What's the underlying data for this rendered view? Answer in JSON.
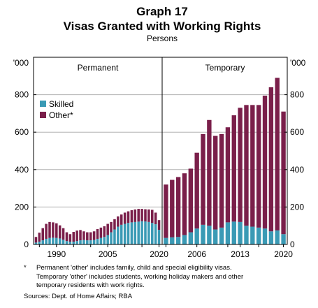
{
  "title_line1": "Graph 17",
  "title_line2": "Visas Granted with Working Rights",
  "units": "Persons",
  "y_unit_label": "'000",
  "colors": {
    "skilled": "#3a9ab5",
    "other": "#7a1f4a"
  },
  "chart_data": [
    {
      "type": "bar",
      "stacked": true,
      "panel": "Permanent",
      "x_tick_labels": [
        "1990",
        "2005",
        "2020"
      ],
      "years": [
        1984,
        1985,
        1986,
        1987,
        1988,
        1989,
        1990,
        1991,
        1992,
        1993,
        1994,
        1995,
        1996,
        1997,
        1998,
        1999,
        2000,
        2001,
        2002,
        2003,
        2004,
        2005,
        2006,
        2007,
        2008,
        2009,
        2010,
        2011,
        2012,
        2013,
        2014,
        2015,
        2016,
        2017,
        2018,
        2019,
        2020
      ],
      "series": [
        {
          "name": "Skilled",
          "values": [
            10,
            15,
            22,
            30,
            35,
            36,
            35,
            32,
            25,
            18,
            15,
            15,
            18,
            22,
            24,
            22,
            22,
            24,
            30,
            35,
            40,
            50,
            65,
            80,
            95,
            105,
            110,
            115,
            118,
            120,
            122,
            124,
            123,
            120,
            115,
            108,
            78
          ]
        },
        {
          "name": "Other*",
          "values": [
            30,
            48,
            65,
            80,
            85,
            82,
            78,
            70,
            62,
            47,
            40,
            52,
            56,
            55,
            46,
            43,
            43,
            46,
            52,
            55,
            57,
            60,
            55,
            55,
            55,
            55,
            60,
            62,
            65,
            67,
            68,
            66,
            65,
            67,
            70,
            62,
            52
          ]
        }
      ],
      "ylim": [
        0,
        1000
      ],
      "yticks": [
        0,
        200,
        400,
        600,
        800
      ],
      "legend": {
        "placement": "upper-left"
      }
    },
    {
      "type": "bar",
      "stacked": true,
      "panel": "Temporary",
      "x_tick_labels": [
        "2006",
        "2013",
        "2020"
      ],
      "years": [
        2001,
        2002,
        2003,
        2004,
        2005,
        2006,
        2007,
        2008,
        2009,
        2010,
        2011,
        2012,
        2013,
        2014,
        2015,
        2016,
        2017,
        2018,
        2019,
        2020
      ],
      "series": [
        {
          "name": "Skilled",
          "values": [
            35,
            38,
            40,
            50,
            65,
            85,
            105,
            100,
            80,
            90,
            118,
            122,
            120,
            100,
            95,
            90,
            85,
            70,
            75,
            55
          ]
        },
        {
          "name": "Other*",
          "values": [
            285,
            307,
            320,
            330,
            340,
            405,
            485,
            565,
            500,
            500,
            508,
            568,
            610,
            645,
            650,
            655,
            710,
            770,
            815,
            655
          ]
        }
      ],
      "ylim": [
        0,
        1000
      ],
      "yticks": [
        0,
        200,
        400,
        600,
        800
      ]
    }
  ],
  "notes": {
    "marker": "*",
    "lines": [
      "Permanent 'other' includes family, child and special eligibility visas.",
      "Temporary 'other' includes students, working holiday makers and other",
      "temporary residents with work rights."
    ],
    "sources": "Sources: Dept. of Home Affairs; RBA"
  }
}
